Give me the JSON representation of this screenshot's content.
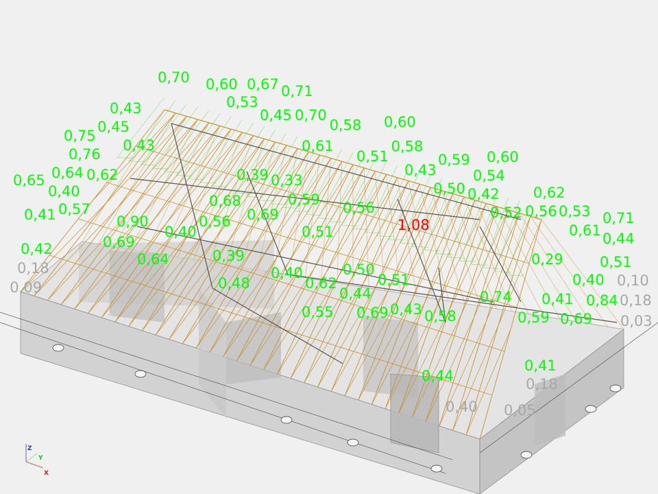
{
  "colors": {
    "background": "#f0f0f0",
    "ok_label": "#00ff00",
    "exceeded_label": "#ff0000",
    "minor_label": "#a8a8a8",
    "truss": "#c8912a",
    "frame": "#555555",
    "wall": "#d0d0d0",
    "deformed": "#7ee07e"
  },
  "axes": {
    "x": "X",
    "y": "Y",
    "z": "Z"
  },
  "labels": [
    {
      "v": "0,70",
      "c": "ok"
    },
    {
      "v": "0,60",
      "c": "ok"
    },
    {
      "v": "0,53",
      "c": "ok"
    },
    {
      "v": "0,67",
      "c": "ok"
    },
    {
      "v": "0,45",
      "c": "ok"
    },
    {
      "v": "0,71",
      "c": "ok"
    },
    {
      "v": "0,70",
      "c": "ok"
    },
    {
      "v": "0,43",
      "c": "ok"
    },
    {
      "v": "0,45",
      "c": "ok"
    },
    {
      "v": "0,43",
      "c": "ok"
    },
    {
      "v": "0,75",
      "c": "ok"
    },
    {
      "v": "0,76",
      "c": "ok"
    },
    {
      "v": "0,64",
      "c": "ok"
    },
    {
      "v": "0,62",
      "c": "ok"
    },
    {
      "v": "0,40",
      "c": "ok"
    },
    {
      "v": "0,65",
      "c": "ok"
    },
    {
      "v": "0,57",
      "c": "ok"
    },
    {
      "v": "0,41",
      "c": "ok"
    },
    {
      "v": "0,42",
      "c": "ok"
    },
    {
      "v": "0,69",
      "c": "ok"
    },
    {
      "v": "0,64",
      "c": "ok"
    },
    {
      "v": "0,90",
      "c": "ok"
    },
    {
      "v": "0,40",
      "c": "ok"
    },
    {
      "v": "0,68",
      "c": "ok"
    },
    {
      "v": "0,69",
      "c": "ok"
    },
    {
      "v": "0,56",
      "c": "ok"
    },
    {
      "v": "0,39",
      "c": "ok"
    },
    {
      "v": "0,39",
      "c": "ok"
    },
    {
      "v": "0,33",
      "c": "ok"
    },
    {
      "v": "0,59",
      "c": "ok"
    },
    {
      "v": "0,51",
      "c": "ok"
    },
    {
      "v": "0,40",
      "c": "ok"
    },
    {
      "v": "0,62",
      "c": "ok"
    },
    {
      "v": "0,48",
      "c": "ok"
    },
    {
      "v": "0,55",
      "c": "ok"
    },
    {
      "v": "0,50",
      "c": "ok"
    },
    {
      "v": "0,51",
      "c": "ok"
    },
    {
      "v": "0,44",
      "c": "ok"
    },
    {
      "v": "0,69",
      "c": "ok"
    },
    {
      "v": "0,43",
      "c": "ok"
    },
    {
      "v": "0,58",
      "c": "ok"
    },
    {
      "v": "0,61",
      "c": "ok"
    },
    {
      "v": "0,58",
      "c": "ok"
    },
    {
      "v": "0,51",
      "c": "ok"
    },
    {
      "v": "0,60",
      "c": "ok"
    },
    {
      "v": "0,58",
      "c": "ok"
    },
    {
      "v": "0,56",
      "c": "ok"
    },
    {
      "v": "1,08",
      "c": "exceeded"
    },
    {
      "v": "0,43",
      "c": "ok"
    },
    {
      "v": "0,59",
      "c": "ok"
    },
    {
      "v": "0,50",
      "c": "ok"
    },
    {
      "v": "0,42",
      "c": "ok"
    },
    {
      "v": "0,54",
      "c": "ok"
    },
    {
      "v": "0,60",
      "c": "ok"
    },
    {
      "v": "0,52",
      "c": "ok"
    },
    {
      "v": "0,56",
      "c": "ok"
    },
    {
      "v": "0,62",
      "c": "ok"
    },
    {
      "v": "0,53",
      "c": "ok"
    },
    {
      "v": "0,61",
      "c": "ok"
    },
    {
      "v": "0,71",
      "c": "ok"
    },
    {
      "v": "0,44",
      "c": "ok"
    },
    {
      "v": "0,29",
      "c": "ok"
    },
    {
      "v": "0,40",
      "c": "ok"
    },
    {
      "v": "0,51",
      "c": "ok"
    },
    {
      "v": "0,84",
      "c": "ok"
    },
    {
      "v": "0,69",
      "c": "ok"
    },
    {
      "v": "0,59",
      "c": "ok"
    },
    {
      "v": "0,41",
      "c": "ok"
    },
    {
      "v": "0,74",
      "c": "ok"
    },
    {
      "v": "0,41",
      "c": "ok"
    },
    {
      "v": "0,44",
      "c": "ok"
    },
    {
      "v": "0,18",
      "c": "minor"
    },
    {
      "v": "0,03",
      "c": "minor"
    },
    {
      "v": "0,10",
      "c": "minor"
    },
    {
      "v": "0,18",
      "c": "minor"
    },
    {
      "v": "0,05",
      "c": "minor"
    },
    {
      "v": "0,40",
      "c": "minor"
    },
    {
      "v": "0,18",
      "c": "minor"
    },
    {
      "v": "0,09",
      "c": "minor"
    }
  ]
}
